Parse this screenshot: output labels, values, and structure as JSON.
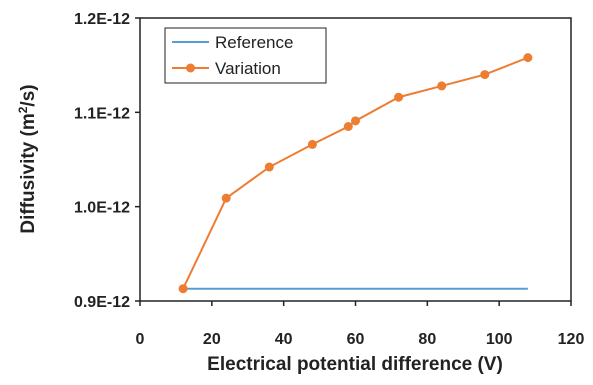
{
  "chart_data": {
    "type": "line",
    "xlabel": "Electrical potential difference (V)",
    "ylabel_main": "Diffusivity (m",
    "ylabel_sup": "2",
    "ylabel_end": "/s)",
    "xlim": [
      0,
      120
    ],
    "ylim": [
      9e-13,
      1.2e-12
    ],
    "x_ticks": [
      0,
      20,
      40,
      60,
      80,
      100,
      120
    ],
    "x_tick_labels": [
      "0",
      "20",
      "40",
      "60",
      "80",
      "100",
      "120"
    ],
    "y_ticks": [
      9e-13,
      1e-12,
      1.1e-12,
      1.2e-12
    ],
    "y_tick_labels": [
      "0.9E-12",
      "1.0E-12",
      "1.1E-12",
      "1.2E-12"
    ],
    "grid": false,
    "legend_position": "top-left",
    "series": [
      {
        "name": "Reference",
        "color": "#5b9bd5",
        "marker": false,
        "x": [
          12,
          108
        ],
        "y": [
          9.13e-13,
          9.13e-13
        ]
      },
      {
        "name": "Variation",
        "color": "#ed7d31",
        "marker": true,
        "x": [
          12,
          24,
          36,
          48,
          58,
          60,
          72,
          84,
          96,
          108
        ],
        "y": [
          9.13e-13,
          1.009e-12,
          1.042e-12,
          1.066e-12,
          1.085e-12,
          1.091e-12,
          1.116e-12,
          1.128e-12,
          1.14e-12,
          1.158e-12
        ]
      }
    ]
  }
}
